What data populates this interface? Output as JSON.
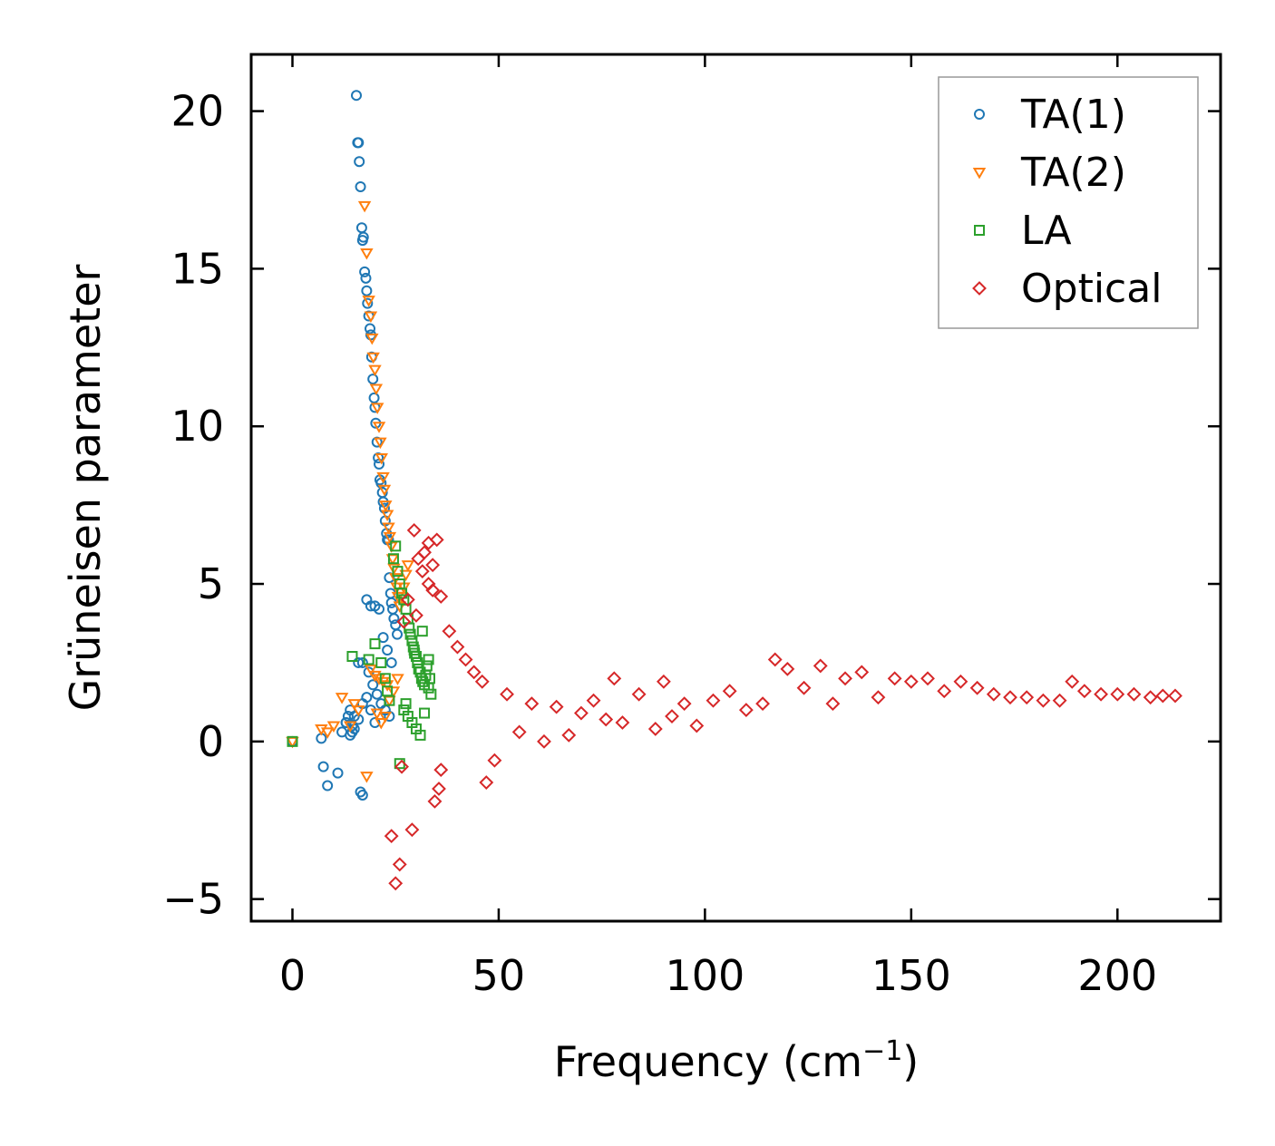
{
  "chart_data": {
    "type": "scatter",
    "title": "",
    "xlabel": "Frequency (cm",
    "xlabel_sup": "−1",
    "xlabel_close": ")",
    "ylabel": "Grüneisen parameter",
    "xlim": [
      -10,
      225
    ],
    "ylim": [
      -5.7,
      21.8
    ],
    "xticks": [
      0,
      50,
      100,
      150,
      200
    ],
    "yticks": [
      -5,
      0,
      5,
      10,
      15,
      20
    ],
    "xtick_labels": [
      "0",
      "50",
      "100",
      "150",
      "200"
    ],
    "ytick_labels": [
      "−5",
      "0",
      "5",
      "10",
      "15",
      "20"
    ],
    "grid": false,
    "legend_position": "top-right",
    "series": [
      {
        "name": "TA(1)",
        "marker": "circle",
        "color": "#1f77b4",
        "x": [
          0,
          7,
          7.5,
          8.5,
          11,
          12,
          13,
          13.5,
          14,
          14.5,
          15,
          15.5,
          15.8,
          16,
          16.2,
          16.5,
          16.8,
          17,
          17.2,
          17.5,
          17.8,
          18,
          18.2,
          18.5,
          18.8,
          19,
          19.2,
          19.5,
          19.8,
          20,
          20.2,
          20.5,
          20.8,
          21,
          21.2,
          21.5,
          21.8,
          22,
          22.3,
          22.5,
          22.8,
          23,
          23.3,
          23.5,
          23.8,
          24,
          24.3,
          24.6,
          25,
          25.4,
          18,
          19,
          20,
          21,
          22,
          23,
          24,
          16,
          17,
          18.5,
          19.5,
          20.5,
          21.5,
          22.5,
          23.5,
          14,
          15,
          16,
          17,
          18,
          19,
          20,
          16.5,
          17,
          13,
          14.5
        ],
        "y": [
          0,
          0.1,
          -0.8,
          -1.4,
          -1.0,
          0.3,
          0.6,
          0.8,
          1.0,
          0.5,
          0.8,
          20.5,
          19.0,
          19.0,
          18.4,
          17.6,
          16.3,
          15.9,
          16.0,
          14.9,
          14.7,
          14.3,
          13.9,
          13.5,
          13.1,
          12.9,
          12.2,
          11.5,
          10.9,
          10.6,
          10.1,
          9.5,
          9.0,
          8.8,
          8.3,
          8.2,
          7.9,
          7.6,
          7.4,
          7.0,
          6.6,
          6.4,
          6.4,
          5.2,
          4.7,
          4.4,
          4.2,
          3.9,
          3.7,
          3.4,
          4.5,
          4.3,
          4.3,
          4.2,
          3.3,
          2.9,
          2.5,
          2.5,
          2.5,
          2.2,
          1.8,
          1.5,
          1.2,
          1.0,
          0.8,
          0.2,
          0.4,
          0.7,
          1.2,
          1.4,
          1.0,
          0.6,
          -1.6,
          -1.7,
          0.6,
          0.3
        ]
      },
      {
        "name": "TA(2)",
        "marker": "triangle-down",
        "color": "#ff7f0e",
        "x": [
          0,
          7,
          8.5,
          10,
          12,
          14,
          15,
          16,
          17.5,
          18,
          18.5,
          19,
          19.3,
          19.6,
          20,
          20.3,
          20.6,
          21,
          21.3,
          21.6,
          22,
          22.3,
          22.6,
          23,
          23.3,
          23.6,
          24,
          24.3,
          24.6,
          25,
          25.3,
          25.6,
          26,
          26.5,
          27,
          27.5,
          28,
          18,
          19,
          20,
          21,
          22,
          23,
          20.5,
          21.5,
          22.5,
          23.5,
          24.5,
          25.5
        ],
        "y": [
          0,
          0.4,
          0.3,
          0.5,
          1.4,
          0.5,
          1.2,
          1.0,
          17.0,
          15.5,
          14.0,
          13.5,
          12.8,
          12.2,
          11.8,
          11.2,
          10.6,
          10.0,
          9.5,
          9.0,
          8.4,
          8.0,
          7.5,
          7.2,
          6.8,
          6.5,
          6.2,
          5.8,
          5.5,
          5.2,
          4.9,
          4.6,
          4.3,
          4.6,
          4.9,
          5.3,
          5.6,
          -1.1,
          2.3,
          2.1,
          2.0,
          1.9,
          1.8,
          0.9,
          0.6,
          0.8,
          1.3,
          1.6,
          2.0
        ]
      },
      {
        "name": "LA",
        "marker": "square",
        "color": "#2ca02c",
        "x": [
          0,
          14.5,
          18.5,
          20,
          21.5,
          22.5,
          23,
          23.5,
          24.5,
          25,
          25.5,
          26,
          26.5,
          27,
          27.5,
          28,
          28.3,
          28.6,
          29,
          29.3,
          29.6,
          30,
          30.3,
          30.6,
          31,
          31.3,
          31.6,
          32,
          32.3,
          32.6,
          33,
          33.3,
          33.6,
          27,
          28,
          29,
          30,
          31,
          32,
          33,
          26,
          27.5,
          29.5,
          31.5
        ],
        "y": [
          0,
          2.7,
          2.6,
          3.1,
          2.5,
          2.0,
          1.6,
          1.3,
          5.8,
          6.2,
          5.4,
          5.0,
          4.7,
          4.5,
          4.2,
          3.9,
          3.6,
          3.4,
          3.2,
          3.0,
          2.8,
          2.7,
          2.5,
          2.3,
          2.2,
          2.0,
          1.9,
          1.8,
          2.1,
          2.4,
          2.6,
          2.0,
          1.5,
          1.0,
          0.8,
          0.6,
          0.4,
          0.2,
          0.9,
          1.7,
          -0.7,
          1.2,
          2.9,
          3.5
        ]
      },
      {
        "name": "Optical",
        "marker": "diamond",
        "color": "#d62728",
        "x": [
          25,
          26,
          26.5,
          24,
          28,
          29,
          32,
          33,
          34,
          35,
          35.5,
          34.5,
          36,
          29.5,
          30.5,
          31.5,
          33,
          34,
          36,
          27,
          30,
          38,
          40,
          42,
          44,
          46,
          47,
          49,
          52,
          55,
          58,
          61,
          64,
          67,
          70,
          73,
          76,
          78,
          80,
          84,
          88,
          90,
          92,
          95,
          98,
          102,
          106,
          110,
          114,
          117,
          120,
          124,
          128,
          131,
          134,
          138,
          142,
          146,
          150,
          154,
          158,
          162,
          166,
          170,
          174,
          178,
          182,
          186,
          189,
          192,
          196,
          200,
          204,
          208,
          211,
          214
        ],
        "y": [
          -4.5,
          -3.9,
          -0.8,
          -3.0,
          4.5,
          -2.8,
          6.0,
          6.3,
          5.6,
          6.4,
          -1.5,
          -1.9,
          -0.9,
          6.7,
          5.8,
          5.4,
          5.0,
          4.8,
          4.6,
          3.8,
          4.0,
          3.5,
          3.0,
          2.6,
          2.2,
          1.9,
          -1.3,
          -0.6,
          1.5,
          0.3,
          1.2,
          0.0,
          1.1,
          0.2,
          0.9,
          1.3,
          0.7,
          2.0,
          0.6,
          1.5,
          0.4,
          1.9,
          0.8,
          1.2,
          0.5,
          1.3,
          1.6,
          1.0,
          1.2,
          2.6,
          2.3,
          1.7,
          2.4,
          1.2,
          2.0,
          2.2,
          1.4,
          2.0,
          1.9,
          2.0,
          1.6,
          1.9,
          1.7,
          1.5,
          1.4,
          1.4,
          1.3,
          1.3,
          1.9,
          1.6,
          1.5,
          1.5,
          1.5,
          1.4,
          1.45,
          1.45
        ]
      }
    ]
  }
}
